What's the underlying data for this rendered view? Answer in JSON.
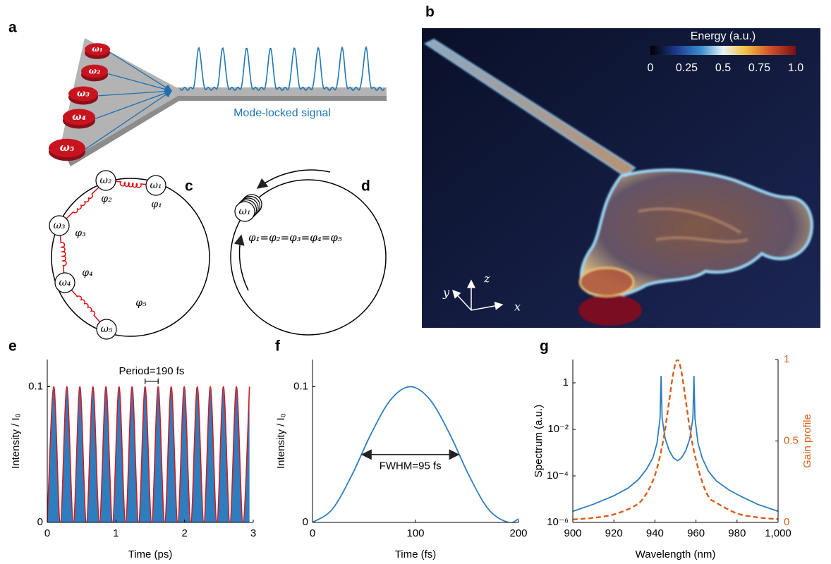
{
  "panel_labels": [
    "a",
    "b",
    "c",
    "d",
    "e",
    "f",
    "g"
  ],
  "panel_a": {
    "oscillators": [
      "ω₁",
      "ω₂",
      "ω₃",
      "ω₄",
      "ω₅"
    ],
    "signal_label": "Mode-locked signal"
  },
  "panel_b": {
    "colorbar": {
      "title": "Energy (a.u.)",
      "lim": [
        0,
        1
      ],
      "ticks": [
        0,
        0.25,
        0.5,
        0.75,
        {
          "value": 1,
          "label": "1.0"
        }
      ]
    },
    "axes": [
      "x",
      "y",
      "z"
    ]
  },
  "panel_c": {
    "nodes": [
      "ω₁",
      "ω₂",
      "ω₃",
      "ω₄",
      "ω₅"
    ],
    "phases": [
      "φ₁",
      "φ₂",
      "φ₃",
      "φ₄",
      "φ₅"
    ]
  },
  "panel_d": {
    "node": "ω₁",
    "relation": "φ₁=φ₂=φ₃=φ₄=φ₅"
  },
  "chart_data": [
    {
      "type": "area",
      "x_label": "Time (ps)",
      "y_label": "Intensity / I₀",
      "x": [
        0,
        0.095,
        0.19,
        0.285,
        0.38,
        0.475,
        0.57,
        0.665,
        0.76,
        0.855,
        0.95,
        1.045,
        1.14,
        1.235,
        1.33,
        1.425,
        1.52,
        1.615,
        1.71,
        1.805,
        1.9,
        1.995,
        2.09,
        2.185,
        2.28,
        2.375,
        2.47,
        2.565,
        2.66,
        2.755,
        2.85,
        2.945
      ],
      "values": [
        0,
        0.1,
        0,
        0.1,
        0,
        0.1,
        0,
        0.1,
        0,
        0.1,
        0,
        0.1,
        0,
        0.1,
        0,
        0.1,
        0,
        0.1,
        0,
        0.1,
        0,
        0.1,
        0,
        0.1,
        0,
        0.1,
        0,
        0.1,
        0,
        0.1,
        0,
        0.1
      ],
      "fill_color": "#2e7dbf",
      "line_color": "#d7191c",
      "xlim": [
        0,
        3
      ],
      "xticks": [
        0,
        1,
        2,
        3
      ],
      "ylim": [
        0,
        0.12
      ],
      "yticks": [
        0,
        0.1
      ],
      "annotation": {
        "text": "Period=190 fs",
        "x": [
          1.425,
          1.615
        ],
        "y": 0.104
      }
    },
    {
      "type": "line",
      "x_label": "Time (fs)",
      "y_label": "Intensity / I₀",
      "x": [
        0,
        19,
        38,
        57,
        76,
        95,
        114,
        133,
        152,
        171,
        190,
        200
      ],
      "values": [
        0,
        0.0095,
        0.0345,
        0.0655,
        0.0905,
        0.1,
        0.0905,
        0.0655,
        0.0345,
        0.0095,
        0,
        0.0026
      ],
      "color": "#2e7dbf",
      "xlim": [
        0,
        200
      ],
      "xticks": [
        0,
        100,
        200
      ],
      "ylim": [
        0,
        0.12
      ],
      "yticks": [
        0,
        0.1
      ],
      "annotation": {
        "text": "FWHM=95 fs",
        "x": [
          47.5,
          142.5
        ],
        "y": 0.05
      }
    },
    {
      "type": "line",
      "x_label": "Wavelength (nm)",
      "y_label": "Spectrum (a.u.)",
      "y2_label": "Gain profile",
      "y_scale": "log",
      "xlim": [
        900,
        1000
      ],
      "xticks": [
        900,
        920,
        940,
        960,
        980,
        {
          "value": 1000,
          "label": "1,000"
        }
      ],
      "ylim": [
        1e-06,
        10
      ],
      "yticks": [
        {
          "value": 1e-06,
          "label": "10⁻⁶"
        },
        {
          "value": 0.0001,
          "label": "10⁻⁴"
        },
        {
          "value": 0.01,
          "label": "10⁻²"
        },
        1
      ],
      "y2lim": [
        0,
        1
      ],
      "y2ticks": [
        0,
        0.5,
        1
      ],
      "y2_color": "#d95f1a",
      "series": [
        {
          "color": "#2e7dbf",
          "x": [
            900,
            910,
            920,
            927,
            932,
            936,
            939,
            941,
            942.5,
            943,
            943.5,
            945,
            947,
            949,
            951,
            953,
            955,
            957,
            958.5,
            959,
            959.5,
            961,
            963,
            966,
            970,
            976,
            982,
            990,
            1000
          ],
          "values": [
            3e-06,
            6e-06,
            1.4e-05,
            3e-05,
            7e-05,
            0.0002,
            0.0006,
            0.0025,
            0.03,
            2,
            0.03,
            0.004,
            0.0012,
            0.0006,
            0.00045,
            0.0006,
            0.0012,
            0.004,
            0.03,
            2,
            0.03,
            0.0025,
            0.0006,
            0.00016,
            6e-05,
            2.5e-05,
            1.3e-05,
            6e-06,
            3e-06
          ]
        },
        {
          "color": "#d95f1a",
          "dash": true,
          "axis": "y2",
          "x": [
            900,
            910,
            920,
            930,
            935,
            940,
            944,
            947,
            949,
            951,
            953,
            955,
            958,
            962,
            966,
            970,
            980,
            990,
            1000
          ],
          "values": [
            0.018,
            0.028,
            0.049,
            0.1,
            0.16,
            0.29,
            0.5,
            0.75,
            0.92,
            1,
            0.92,
            0.75,
            0.5,
            0.29,
            0.16,
            0.12,
            0.055,
            0.031,
            0.02
          ]
        }
      ]
    }
  ]
}
